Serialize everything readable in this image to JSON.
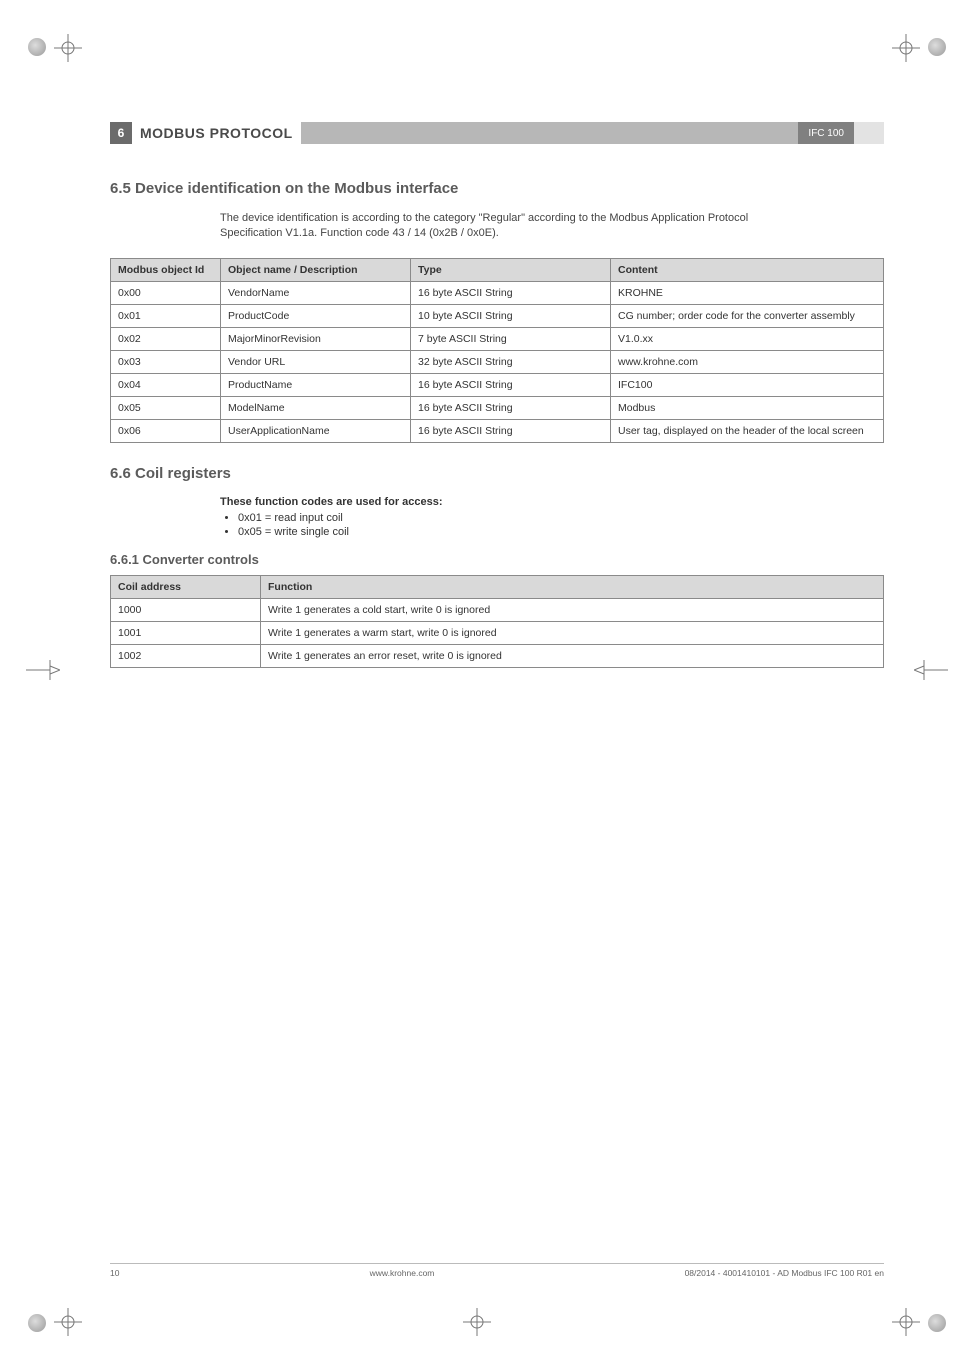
{
  "header": {
    "chapter_number": "6",
    "chapter_title": "MODBUS PROTOCOL",
    "product_badge": "IFC 100"
  },
  "section65": {
    "heading": "6.5  Device identification on the Modbus interface",
    "intro": "The device identification is according to the category \"Regular\" according to the Modbus Application Protocol Specification V1.1a. Function code 43 / 14 (0x2B / 0x0E).",
    "columns": [
      "Modbus object Id",
      "Object name / Description",
      "Type",
      "Content"
    ],
    "rows": [
      [
        "0x00",
        "VendorName",
        "16 byte ASCII String",
        "KROHNE"
      ],
      [
        "0x01",
        "ProductCode",
        "10 byte ASCII String",
        "CG number; order code for the converter assembly"
      ],
      [
        "0x02",
        "MajorMinorRevision",
        "7 byte ASCII String",
        "V1.0.xx"
      ],
      [
        "0x03",
        "Vendor URL",
        "32 byte ASCII String",
        "www.krohne.com"
      ],
      [
        "0x04",
        "ProductName",
        "16 byte ASCII String",
        "IFC100"
      ],
      [
        "0x05",
        "ModelName",
        "16 byte ASCII String",
        "Modbus"
      ],
      [
        "0x06",
        "UserApplicationName",
        "16 byte ASCII String",
        "User tag, displayed on the header of the local screen"
      ]
    ]
  },
  "section66": {
    "heading": "6.6  Coil registers",
    "codes_intro": "These function codes are used for access:",
    "codes": [
      "0x01 = read input coil",
      "0x05 = write single coil"
    ],
    "sub_heading": "6.6.1  Converter controls",
    "columns": [
      "Coil address",
      "Function"
    ],
    "rows": [
      [
        "1000",
        "Write 1 generates a cold start, write 0 is ignored"
      ],
      [
        "1001",
        "Write 1 generates a warm start, write 0 is ignored"
      ],
      [
        "1002",
        "Write 1 generates an error reset, write 0 is ignored"
      ]
    ]
  },
  "footer": {
    "page": "10",
    "site": "www.krohne.com",
    "doc": "08/2014 - 4001410101 - AD Modbus IFC 100 R01 en"
  }
}
